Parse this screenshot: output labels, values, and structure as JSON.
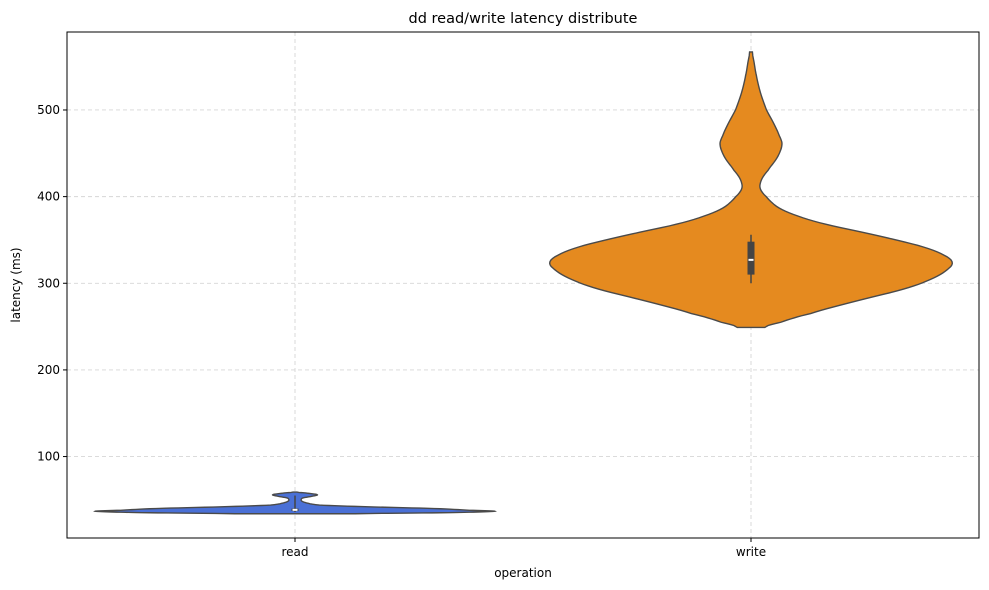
{
  "chart_data": {
    "type": "violin",
    "title": "dd read/write latency distribute",
    "xlabel": "operation",
    "ylabel": "latency (ms)",
    "categories": [
      "read",
      "write"
    ],
    "ylim": [
      6,
      590
    ],
    "yticks": [
      100,
      200,
      300,
      400,
      500
    ],
    "grid": true,
    "series": [
      {
        "category": "read",
        "color": "#4a70d6",
        "min": 34,
        "max": 59,
        "quartiles": [
          37.5,
          40
        ],
        "median": 38.5,
        "whiskers": [
          36,
          55
        ],
        "density_profile": [
          [
            34,
            0.2
          ],
          [
            35,
            0.7
          ],
          [
            36,
            0.9
          ],
          [
            37,
            1.0
          ],
          [
            38,
            0.85
          ],
          [
            40,
            0.7
          ],
          [
            42,
            0.35
          ],
          [
            44,
            0.1
          ],
          [
            48,
            0.03
          ],
          [
            52,
            0.03
          ],
          [
            54,
            0.08
          ],
          [
            56,
            0.12
          ],
          [
            58,
            0.05
          ],
          [
            59,
            0
          ]
        ]
      },
      {
        "category": "write",
        "color": "#e58a1f",
        "min": 249,
        "max": 567,
        "quartiles": [
          310,
          348
        ],
        "median": 327,
        "whiskers": [
          300,
          356
        ],
        "density_profile": [
          [
            249,
            0.05
          ],
          [
            255,
            0.14
          ],
          [
            265,
            0.28
          ],
          [
            280,
            0.52
          ],
          [
            295,
            0.78
          ],
          [
            310,
            0.93
          ],
          [
            325,
            1.0
          ],
          [
            340,
            0.88
          ],
          [
            355,
            0.62
          ],
          [
            370,
            0.32
          ],
          [
            385,
            0.14
          ],
          [
            400,
            0.07
          ],
          [
            410,
            0.04
          ],
          [
            420,
            0.05
          ],
          [
            430,
            0.08
          ],
          [
            445,
            0.13
          ],
          [
            460,
            0.155
          ],
          [
            470,
            0.14
          ],
          [
            485,
            0.11
          ],
          [
            500,
            0.075
          ],
          [
            520,
            0.045
          ],
          [
            540,
            0.025
          ],
          [
            555,
            0.015
          ],
          [
            567,
            0.005
          ]
        ]
      }
    ]
  }
}
